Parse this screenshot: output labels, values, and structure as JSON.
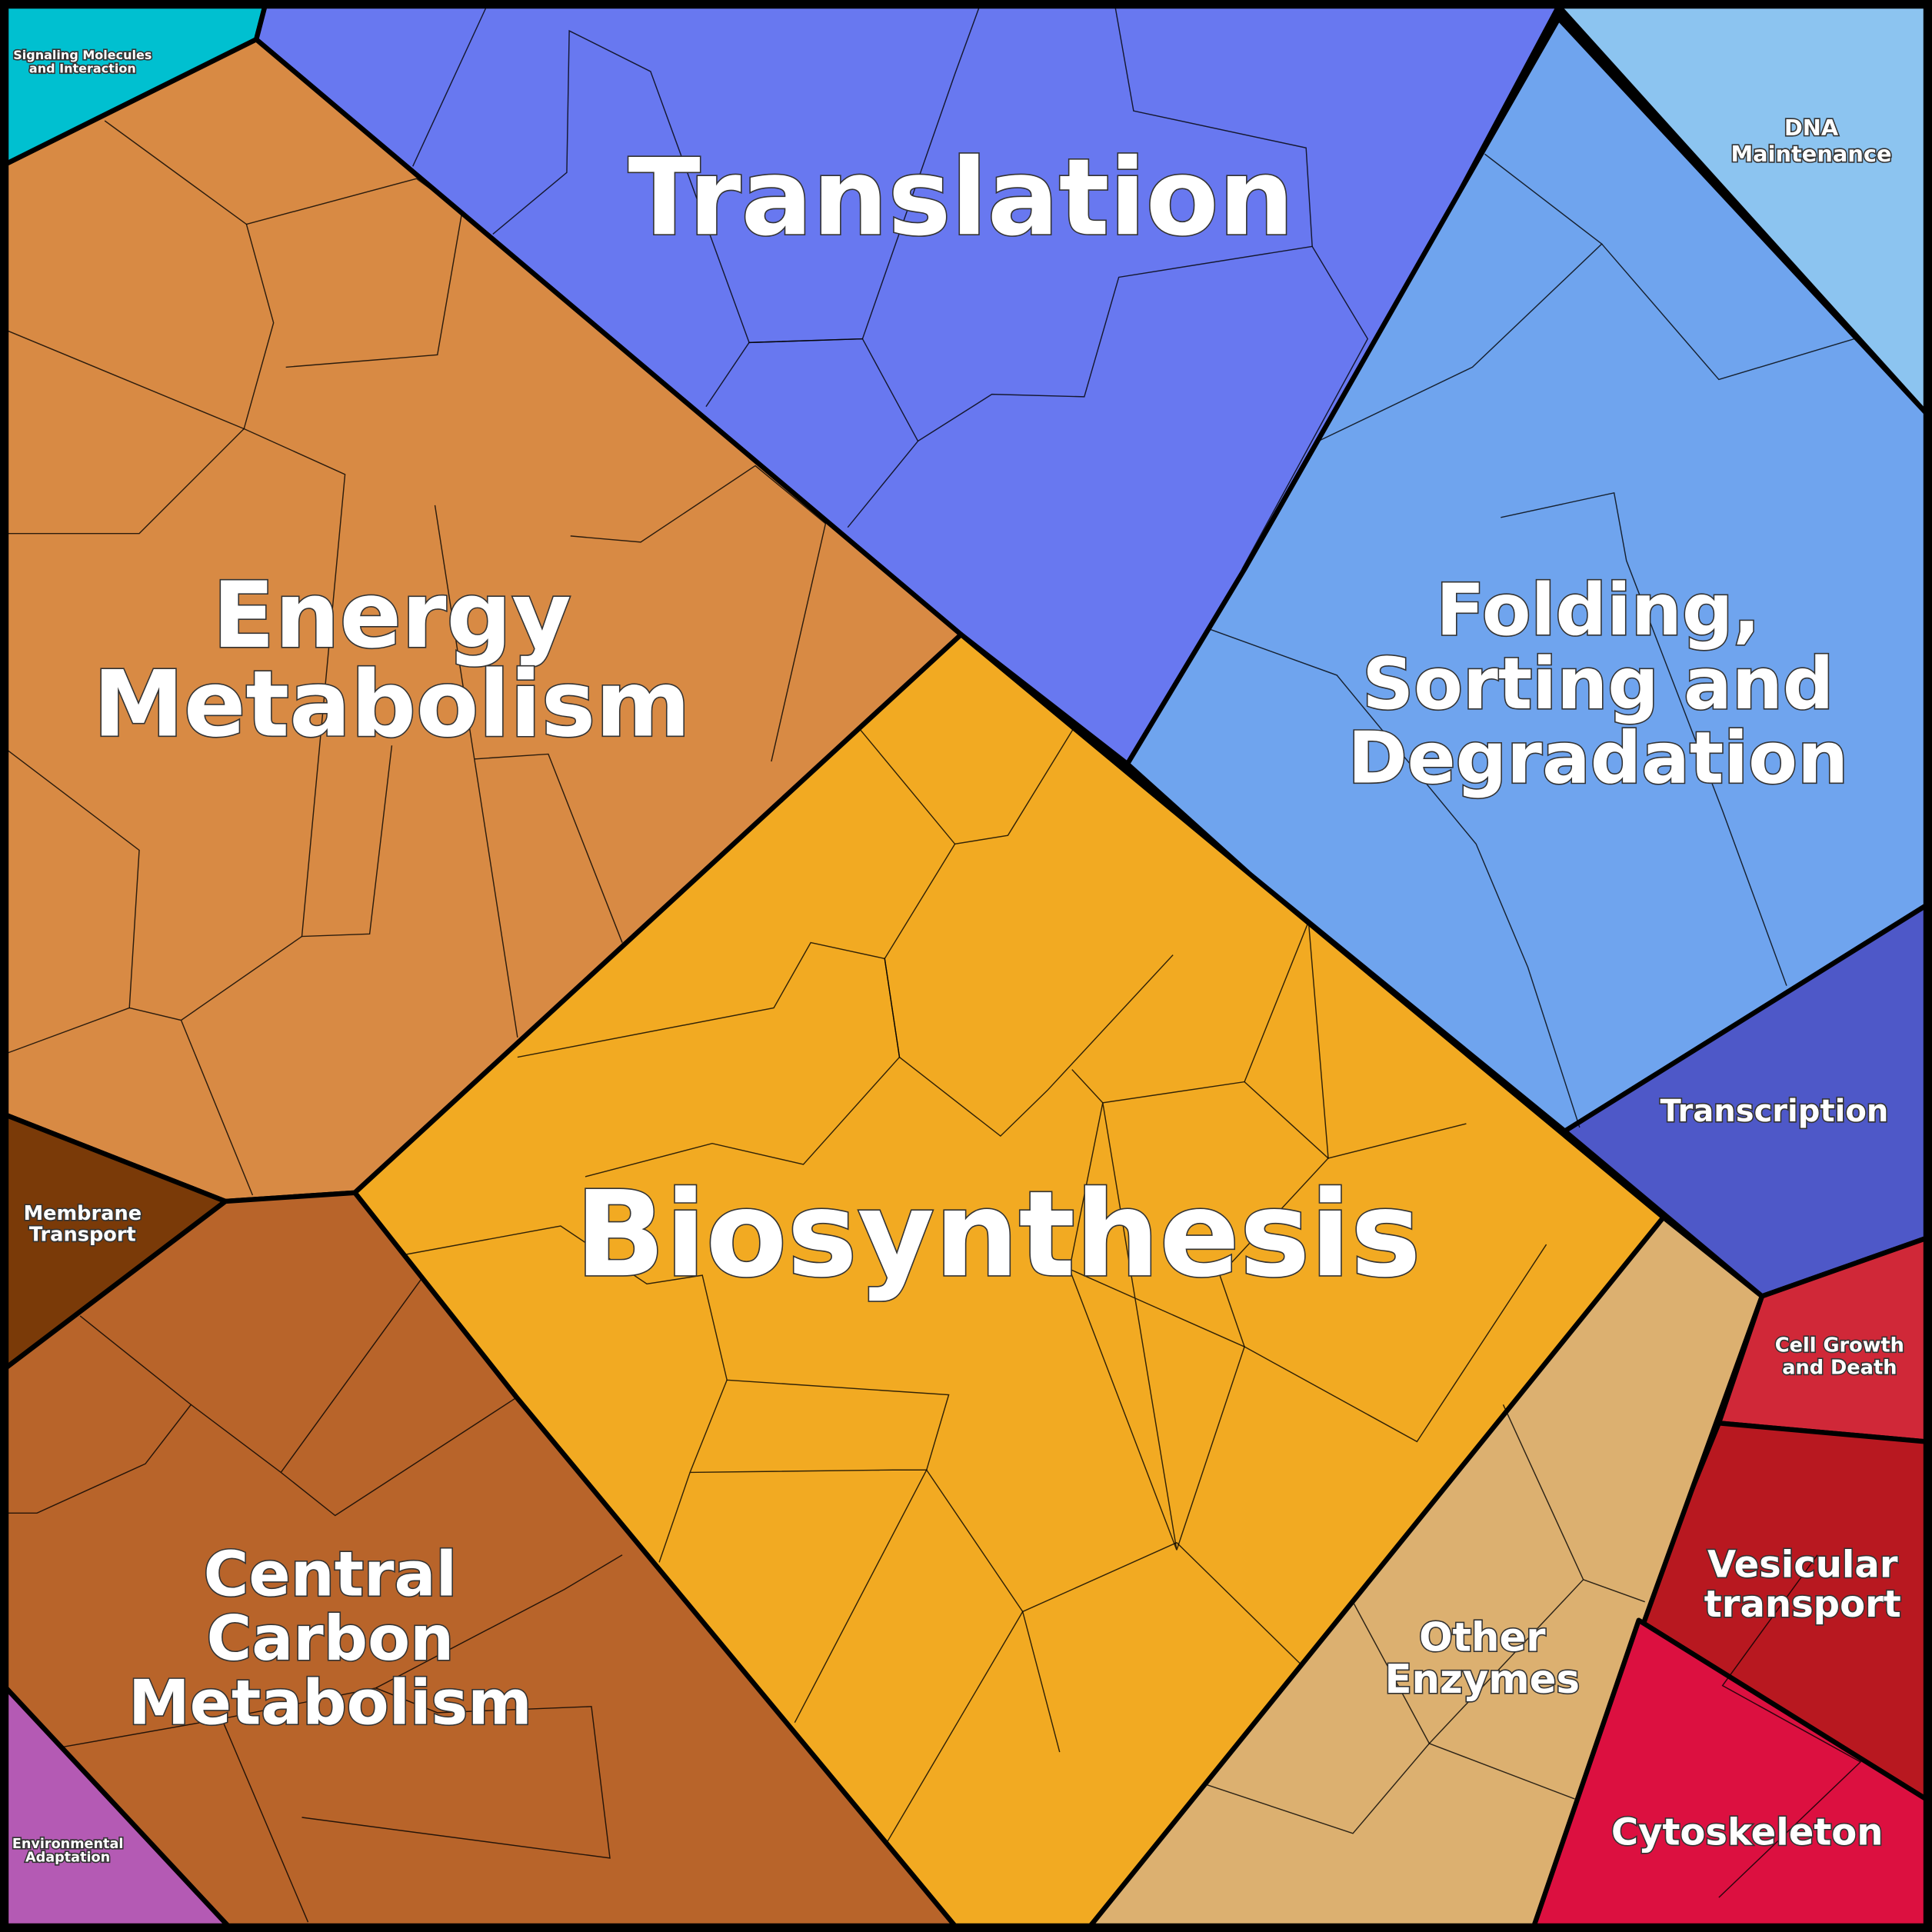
{
  "regions": [
    {
      "label": "Signaling Molecules\nand Interaction"
    },
    {
      "label": "Translation"
    },
    {
      "label": "DNA\nMaintenance"
    },
    {
      "label": "Folding,\nSorting and\nDegradation"
    },
    {
      "label": "Energy\nMetabolism"
    },
    {
      "label": "Biosynthesis"
    },
    {
      "label": "Transcription"
    },
    {
      "label": "Membrane\nTransport"
    },
    {
      "label": "Cell Growth\nand Death"
    },
    {
      "label": "Vesicular\ntransport"
    },
    {
      "label": "Central\nCarbon\nMetabolism"
    },
    {
      "label": "Other\nEnzymes"
    },
    {
      "label": "Environmental\nAdaptation"
    },
    {
      "label": "Cytoskeleton"
    }
  ]
}
